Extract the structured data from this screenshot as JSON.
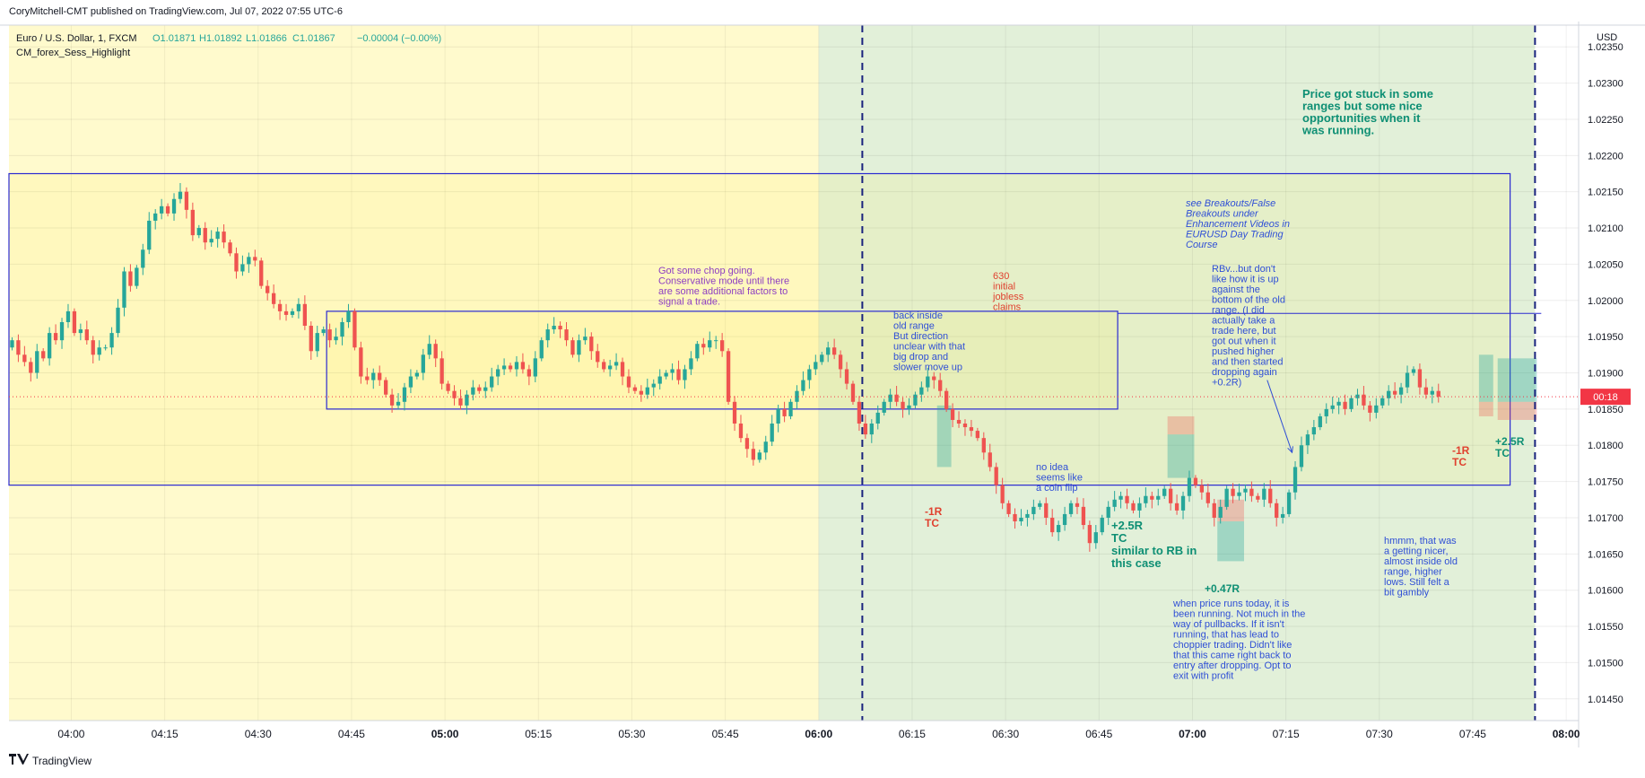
{
  "header": {
    "published": "CoryMitchell-CMT published on TradingView.com, Jul 07, 2022 07:55 UTC-6",
    "symbol": "Euro / U.S. Dollar, 1, FXCM",
    "ohlc_o": "O1.01871",
    "ohlc_h": "H1.01892",
    "ohlc_l": "L1.01866",
    "ohlc_c": "C1.01867",
    "change": "−0.00004 (−0.00%)",
    "indicator": "CM_forex_Sess_Highlight"
  },
  "footer": {
    "brand": "TradingView",
    "logo_icon": "tradingview-logo-icon"
  },
  "price_axis": {
    "currency": "USD",
    "last_label": "00:18"
  },
  "colors": {
    "up": "#26a69a",
    "down": "#ef5350",
    "asia_session": "#fffacd",
    "london_session": "#e2f0d9",
    "box": "#2a2ad1",
    "last_price": "#f23645",
    "note_blue": "#2f4fd6",
    "note_purple": "#8d3fc2",
    "note_red": "#e0412f",
    "note_teal": "#0e8f74",
    "separator": "#1a237e"
  },
  "chart_data": {
    "type": "candlestick",
    "symbol": "EURUSD",
    "interval": "1",
    "x_ticks": [
      "04:00",
      "04:15",
      "04:30",
      "04:45",
      "05:00",
      "05:15",
      "05:30",
      "05:45",
      "06:00",
      "06:15",
      "06:30",
      "06:45",
      "07:00",
      "07:15",
      "07:30",
      "07:45",
      "08:00"
    ],
    "x_tick_bold": [
      "05:00",
      "06:00",
      "07:00",
      "08:00"
    ],
    "y_ticks": [
      "1.02350",
      "1.02300",
      "1.02250",
      "1.02200",
      "1.02150",
      "1.02100",
      "1.02050",
      "1.02000",
      "1.01950",
      "1.01900",
      "1.01850",
      "1.01800",
      "1.01750",
      "1.01700",
      "1.01650",
      "1.01600",
      "1.01550",
      "1.01500",
      "1.01450"
    ],
    "ylim": [
      1.0142,
      1.0238
    ],
    "xlim": [
      "03:50",
      "08:02"
    ],
    "last_price": 1.01867,
    "session_bands": [
      {
        "start": "03:50",
        "end": "06:00",
        "color": "#fffacd"
      },
      {
        "start": "06:00",
        "end": "07:55",
        "color": "#e2f0d9"
      }
    ],
    "vertical_lines": [
      "06:07",
      "07:55"
    ],
    "boxes": [
      {
        "t1": "03:50",
        "t2": "07:51",
        "p1": 1.02175,
        "p2": 1.01745
      },
      {
        "t1": "04:41",
        "t2": "06:48",
        "p1": 1.01985,
        "p2": 1.0185
      }
    ],
    "hlines": [
      {
        "t1": "06:48",
        "t2": "07:56",
        "p": 1.01982
      }
    ],
    "arrows": [
      {
        "t1": "07:12",
        "p1": 1.0189,
        "t2": "07:16",
        "p2": 1.0179
      }
    ],
    "trades": [
      {
        "t1": "06:19",
        "t2": "06:21",
        "entry": 1.01855,
        "stop": 1.01855,
        "target": 1.0177,
        "result": "win"
      },
      {
        "t1": "06:56",
        "t2": "07:00",
        "entry": 1.01815,
        "stop": 1.0184,
        "target": 1.01755,
        "result": "win"
      },
      {
        "t1": "07:04",
        "t2": "07:08",
        "entry": 1.01695,
        "stop": 1.01725,
        "target": 1.0164,
        "result": "win"
      },
      {
        "t1": "07:46",
        "t2": "07:48",
        "entry": 1.0186,
        "stop": 1.0184,
        "target": 1.01925,
        "result": "loss"
      },
      {
        "t1": "07:49",
        "t2": "07:55",
        "entry": 1.0186,
        "stop": 1.01835,
        "target": 1.0192,
        "result": "win"
      }
    ],
    "candles": {
      "start": "03:50",
      "interval_min": 1,
      "close": [
        1.01945,
        1.01925,
        1.01915,
        1.019,
        1.0193,
        1.0192,
        1.01955,
        1.01945,
        1.0197,
        1.01985,
        1.01955,
        1.0196,
        1.01945,
        1.01925,
        1.01935,
        1.01935,
        1.01955,
        1.0199,
        1.0204,
        1.0202,
        1.02045,
        1.0207,
        1.0211,
        1.0212,
        1.0213,
        1.0212,
        1.0214,
        1.0215,
        1.02125,
        1.0209,
        1.021,
        1.0208,
        1.02085,
        1.02095,
        1.0208,
        1.02065,
        1.0204,
        1.0205,
        1.0206,
        1.02055,
        1.0202,
        1.0201,
        1.01995,
        1.01985,
        1.0198,
        1.01985,
        1.01995,
        1.01965,
        1.0193,
        1.01955,
        1.0196,
        1.01945,
        1.0195,
        1.0197,
        1.01985,
        1.01935,
        1.01895,
        1.0189,
        1.019,
        1.0189,
        1.0187,
        1.01855,
        1.0186,
        1.0188,
        1.01895,
        1.019,
        1.01925,
        1.0194,
        1.0192,
        1.01885,
        1.01875,
        1.01865,
        1.01855,
        1.0187,
        1.0188,
        1.01875,
        1.0188,
        1.01895,
        1.01905,
        1.0191,
        1.01905,
        1.01915,
        1.01905,
        1.01895,
        1.0192,
        1.01945,
        1.0196,
        1.01965,
        1.0196,
        1.01945,
        1.01925,
        1.01945,
        1.0195,
        1.0193,
        1.01915,
        1.01905,
        1.0191,
        1.01915,
        1.01895,
        1.0188,
        1.01875,
        1.0187,
        1.0188,
        1.01885,
        1.01895,
        1.019,
        1.01905,
        1.0189,
        1.01905,
        1.0192,
        1.0194,
        1.01935,
        1.01945,
        1.01945,
        1.0193,
        1.0186,
        1.0183,
        1.0181,
        1.01795,
        1.0178,
        1.0179,
        1.01805,
        1.0183,
        1.0185,
        1.0184,
        1.0186,
        1.01875,
        1.0189,
        1.01905,
        1.01915,
        1.01925,
        1.01935,
        1.01925,
        1.01905,
        1.01885,
        1.0186,
        1.0183,
        1.01815,
        1.0183,
        1.01845,
        1.0186,
        1.0187,
        1.0186,
        1.0185,
        1.01855,
        1.0187,
        1.0188,
        1.01895,
        1.0189,
        1.01875,
        1.0185,
        1.01835,
        1.0183,
        1.01825,
        1.0182,
        1.0181,
        1.0179,
        1.0177,
        1.01745,
        1.0172,
        1.01705,
        1.01695,
        1.017,
        1.01705,
        1.01715,
        1.0172,
        1.017,
        1.0168,
        1.0169,
        1.01705,
        1.0172,
        1.01715,
        1.0169,
        1.01665,
        1.0168,
        1.017,
        1.01715,
        1.01725,
        1.0173,
        1.0172,
        1.0171,
        1.0172,
        1.0173,
        1.01725,
        1.0173,
        1.0174,
        1.0172,
        1.0171,
        1.0173,
        1.01755,
        1.01745,
        1.01735,
        1.0172,
        1.017,
        1.01715,
        1.0174,
        1.0173,
        1.01735,
        1.0174,
        1.0173,
        1.01725,
        1.0174,
        1.0172,
        1.017,
        1.01705,
        1.01735,
        1.0177,
        1.018,
        1.01815,
        1.01825,
        1.0184,
        1.0185,
        1.01855,
        1.0186,
        1.0185,
        1.01865,
        1.0187,
        1.01855,
        1.01845,
        1.01855,
        1.01865,
        1.01875,
        1.0187,
        1.0188,
        1.019,
        1.01905,
        1.0188,
        1.0187,
        1.01875,
        1.01867
      ],
      "source_hint": "open = previous close; wicks estimated"
    }
  },
  "annotations": [
    {
      "id": "chop",
      "color": "purple",
      "lines": [
        "Got some chop going.",
        "Conservative mode until there",
        "are some additional factors to",
        "signal a trade."
      ]
    },
    {
      "id": "jobless",
      "color": "red",
      "lines": [
        "630",
        "initial",
        "jobless",
        "claims"
      ]
    },
    {
      "id": "back-inside",
      "color": "blue",
      "lines": [
        "back inside",
        "old range",
        "But direction",
        "unclear with that",
        "big drop and",
        "slower move up"
      ]
    },
    {
      "id": "coin-flip",
      "color": "blue",
      "lines": [
        "no idea",
        "seems like",
        "a coin flip"
      ]
    },
    {
      "id": "minus1r-a",
      "color": "red",
      "lines": [
        "-1R",
        "TC"
      ]
    },
    {
      "id": "plus25r-a",
      "color": "teal",
      "lines": [
        "+2.5R",
        "TC",
        "similar to RB in",
        "this case"
      ]
    },
    {
      "id": "plus047r",
      "color": "teal",
      "lines": [
        "+0.47R"
      ]
    },
    {
      "id": "runs",
      "color": "blue",
      "lines": [
        "when price runs today, it is",
        "been running. Not much in the",
        "way of pullbacks. If it isn't",
        "running, that has lead to",
        "choppier trading. Didn't like",
        "that this came right back to",
        "entry after dropping. Opt to",
        "exit with profit"
      ]
    },
    {
      "id": "breakouts",
      "color": "blue",
      "italic": true,
      "lines": [
        "see Breakouts/False",
        "Breakouts under",
        "Enhancement Videos in",
        "EURUSD Day Trading",
        "Course"
      ]
    },
    {
      "id": "rbv",
      "color": "blue",
      "lines": [
        "RBv...but don't",
        "like how it is up",
        "against the",
        "bottom of the old",
        "range. (I did",
        "actually take a",
        "trade here, but",
        "got out when it",
        "pushed higher",
        "and then started",
        "dropping again",
        "+0.2R)"
      ]
    },
    {
      "id": "stuck",
      "color": "teal",
      "lines": [
        "Price got stuck in some",
        "ranges but some nice",
        "opportunities when it",
        "was running."
      ]
    },
    {
      "id": "hmmm",
      "color": "blue",
      "lines": [
        "hmmm, that was",
        "a getting nicer,",
        "almost inside old",
        "range, higher",
        "lows. Still felt a",
        "bit gambly"
      ]
    },
    {
      "id": "minus1r-b",
      "color": "red",
      "lines": [
        "-1R",
        "TC"
      ]
    },
    {
      "id": "plus25r-b",
      "color": "teal",
      "lines": [
        "+2.5R",
        "TC"
      ]
    }
  ]
}
